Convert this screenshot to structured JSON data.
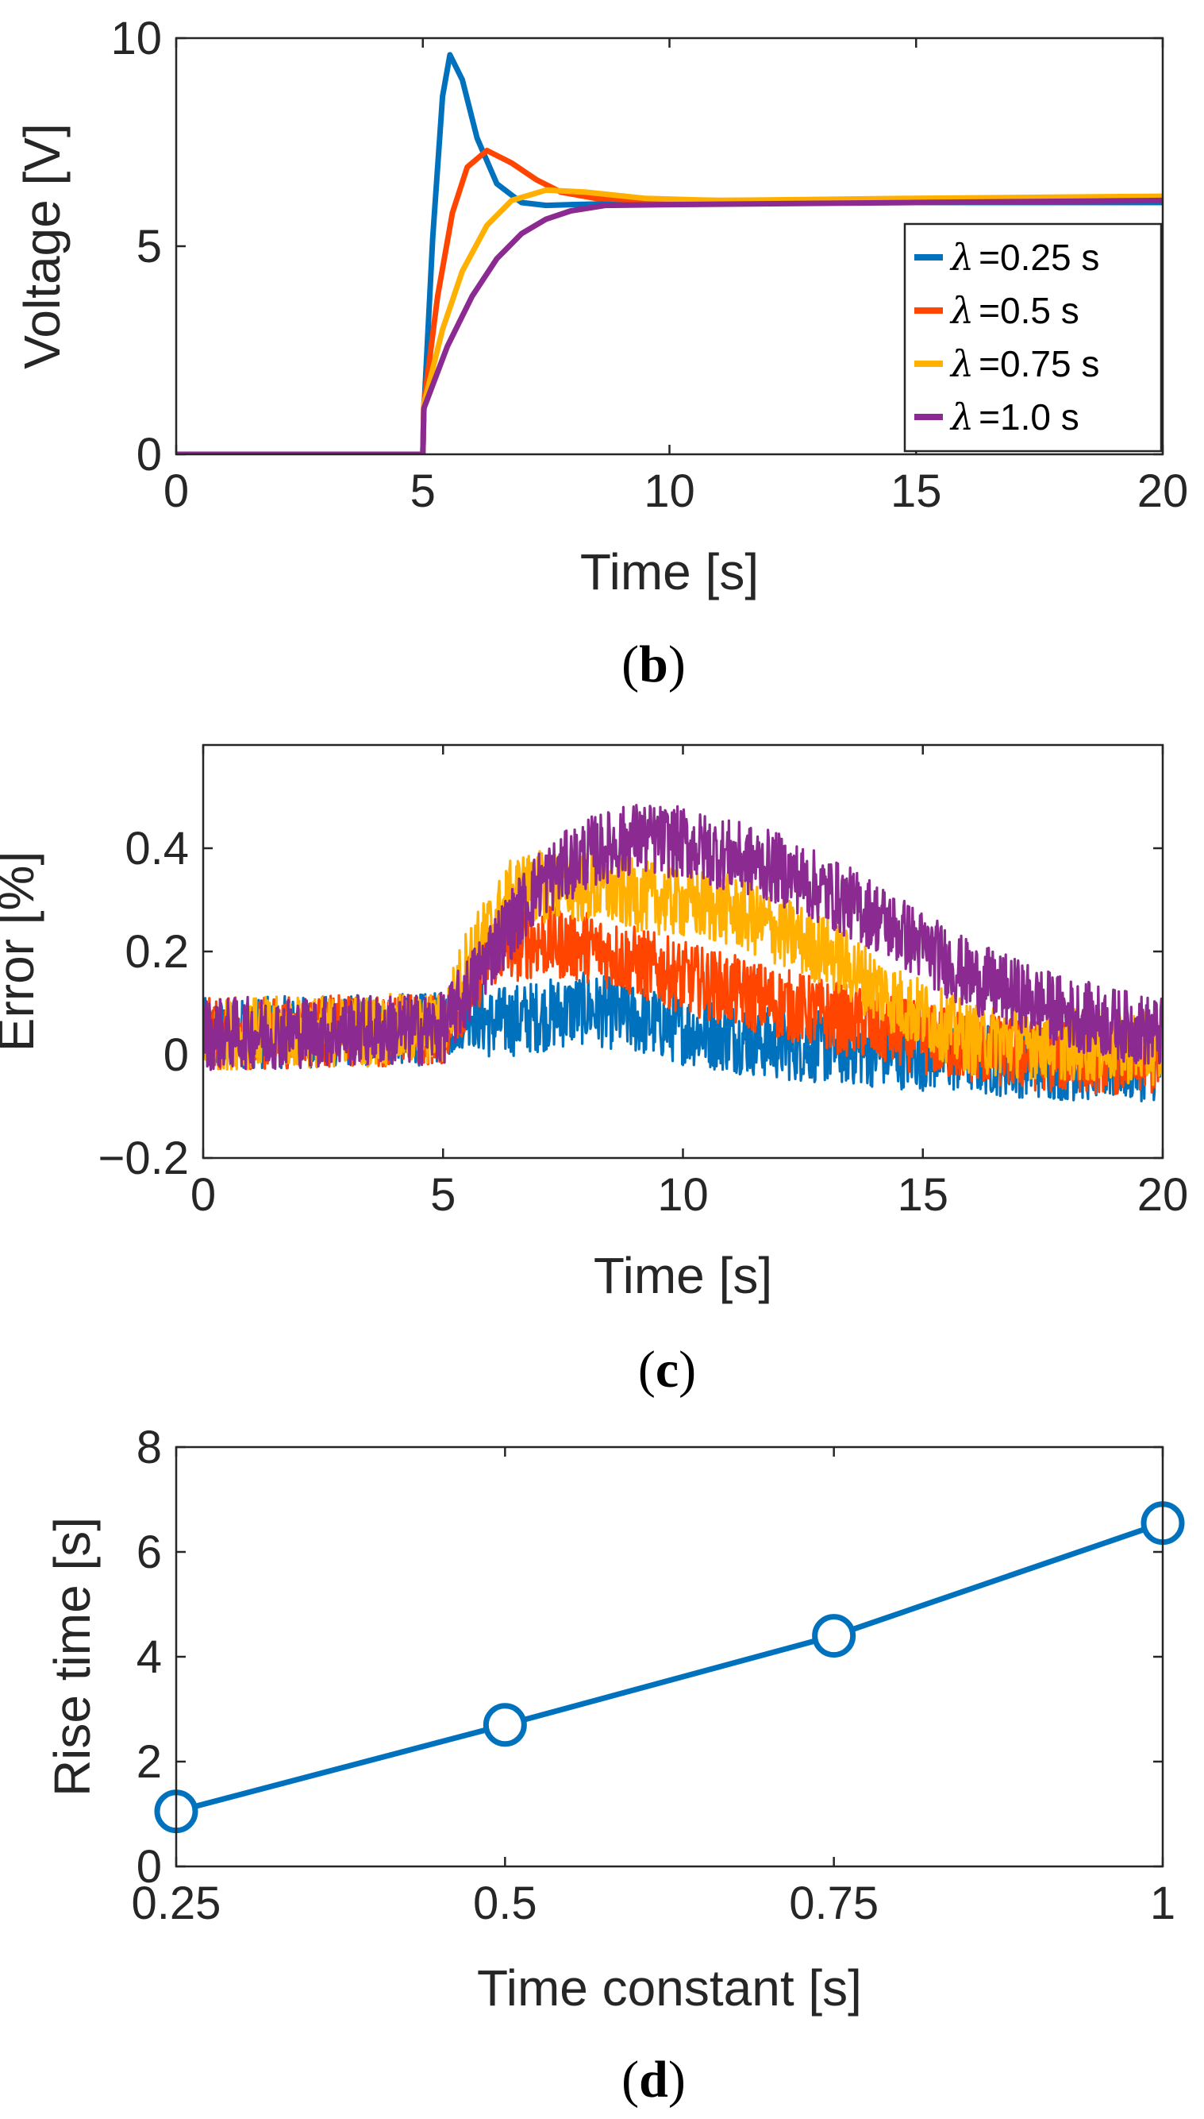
{
  "chart_data": [
    {
      "id": "b",
      "type": "line",
      "caption": {
        "open": "(",
        "letter": "b",
        "close": ")"
      },
      "xlabel": "Time [s]",
      "ylabel": "Voltage [V]",
      "xlim": [
        0,
        20
      ],
      "ylim": [
        0,
        10
      ],
      "xticks": [
        0,
        5,
        10,
        15,
        20
      ],
      "yticks": [
        0,
        5,
        10
      ],
      "grid": false,
      "legend": "right",
      "series": [
        {
          "name": "=0.25 s",
          "lambda_symbol": "λ",
          "color": "#0072BD",
          "tau": 0.25,
          "peak": 9.6,
          "peak_t": 5.55,
          "final": 6.0,
          "points": [
            [
              0,
              0
            ],
            [
              5,
              0
            ],
            [
              5.02,
              1.0
            ],
            [
              5.2,
              5.2
            ],
            [
              5.4,
              8.6
            ],
            [
              5.55,
              9.6
            ],
            [
              5.8,
              9.0
            ],
            [
              6.1,
              7.6
            ],
            [
              6.5,
              6.5
            ],
            [
              7.0,
              6.05
            ],
            [
              7.5,
              5.98
            ],
            [
              8,
              6.0
            ],
            [
              10,
              6.05
            ],
            [
              15,
              6.05
            ],
            [
              20,
              6.05
            ]
          ]
        },
        {
          "name": "=0.5 s",
          "lambda_symbol": "λ",
          "color": "#FF4500",
          "tau": 0.5,
          "peak": 7.3,
          "peak_t": 6.3,
          "final": 6.1,
          "points": [
            [
              0,
              0
            ],
            [
              5,
              0
            ],
            [
              5.02,
              1.2
            ],
            [
              5.3,
              3.8
            ],
            [
              5.6,
              5.8
            ],
            [
              5.9,
              6.9
            ],
            [
              6.3,
              7.3
            ],
            [
              6.8,
              7.0
            ],
            [
              7.3,
              6.6
            ],
            [
              7.8,
              6.3
            ],
            [
              8.5,
              6.15
            ],
            [
              9.5,
              6.1
            ],
            [
              12,
              6.1
            ],
            [
              20,
              6.1
            ]
          ]
        },
        {
          "name": "=0.75 s",
          "lambda_symbol": "λ",
          "color": "#FFB000",
          "tau": 0.75,
          "peak": 6.35,
          "peak_t": 7.5,
          "final": 6.2,
          "points": [
            [
              0,
              0
            ],
            [
              5,
              0
            ],
            [
              5.02,
              1.2
            ],
            [
              5.4,
              3.0
            ],
            [
              5.8,
              4.4
            ],
            [
              6.3,
              5.5
            ],
            [
              6.8,
              6.1
            ],
            [
              7.5,
              6.35
            ],
            [
              8.3,
              6.3
            ],
            [
              9.5,
              6.15
            ],
            [
              11,
              6.1
            ],
            [
              15,
              6.15
            ],
            [
              20,
              6.2
            ]
          ]
        },
        {
          "name": "=1.0 s",
          "lambda_symbol": "λ",
          "color": "#8B2A90",
          "tau": 1.0,
          "peak": 6.1,
          "peak_t": 9.5,
          "final": 6.1,
          "points": [
            [
              0,
              0
            ],
            [
              5,
              0
            ],
            [
              5.02,
              1.1
            ],
            [
              5.5,
              2.6
            ],
            [
              6.0,
              3.8
            ],
            [
              6.5,
              4.7
            ],
            [
              7.0,
              5.3
            ],
            [
              7.5,
              5.65
            ],
            [
              8.0,
              5.85
            ],
            [
              8.7,
              5.98
            ],
            [
              10,
              6.0
            ],
            [
              15,
              6.05
            ],
            [
              20,
              6.1
            ]
          ]
        }
      ]
    },
    {
      "id": "c",
      "type": "line",
      "caption": {
        "open": "(",
        "letter": "c",
        "close": ")"
      },
      "xlabel": "Time [s]",
      "ylabel": "Error [%]",
      "xlim": [
        0,
        20
      ],
      "ylim": [
        -0.2,
        0.6
      ],
      "xticks": [
        0,
        5,
        10,
        15,
        20
      ],
      "yticks": [
        -0.2,
        0,
        0.2,
        0.4
      ],
      "ytick_labels": [
        "−0.2",
        "0",
        "0.2",
        "0.4"
      ],
      "grid": false,
      "noise_band": 0.07,
      "series": [
        {
          "color": "#0072BD",
          "mean": [
            [
              0,
              0.04
            ],
            [
              5,
              0.05
            ],
            [
              5.5,
              0.09
            ],
            [
              6,
              0.06
            ],
            [
              8,
              0.09
            ],
            [
              10,
              0.05
            ],
            [
              12,
              0.02
            ],
            [
              15,
              0.0
            ],
            [
              18,
              -0.02
            ],
            [
              20,
              -0.02
            ]
          ]
        },
        {
          "color": "#FF4500",
          "mean": [
            [
              0,
              0.04
            ],
            [
              5,
              0.05
            ],
            [
              5.5,
              0.12
            ],
            [
              6,
              0.2
            ],
            [
              7,
              0.22
            ],
            [
              8,
              0.21
            ],
            [
              10,
              0.15
            ],
            [
              12,
              0.1
            ],
            [
              15,
              0.03
            ],
            [
              17,
              0.0
            ],
            [
              20,
              -0.01
            ]
          ]
        },
        {
          "color": "#FFB000",
          "mean": [
            [
              0,
              0.04
            ],
            [
              5,
              0.05
            ],
            [
              5.5,
              0.18
            ],
            [
              6.5,
              0.32
            ],
            [
              7.5,
              0.33
            ],
            [
              9,
              0.31
            ],
            [
              11,
              0.28
            ],
            [
              13,
              0.2
            ],
            [
              14.5,
              0.1
            ],
            [
              16,
              0.03
            ],
            [
              20,
              0.01
            ]
          ]
        },
        {
          "color": "#8B2A90",
          "mean": [
            [
              0,
              0.04
            ],
            [
              5,
              0.05
            ],
            [
              5.5,
              0.12
            ],
            [
              6,
              0.2
            ],
            [
              7,
              0.33
            ],
            [
              8,
              0.39
            ],
            [
              9,
              0.42
            ],
            [
              10,
              0.41
            ],
            [
              12,
              0.36
            ],
            [
              14,
              0.27
            ],
            [
              16,
              0.15
            ],
            [
              18,
              0.08
            ],
            [
              20,
              0.04
            ]
          ]
        }
      ]
    },
    {
      "id": "d",
      "type": "line",
      "caption": {
        "open": "(",
        "letter": "d",
        "close": ")"
      },
      "xlabel": "Time constant [s]",
      "ylabel": "Rise time [s]",
      "xlim": [
        0.25,
        1
      ],
      "ylim": [
        0,
        8
      ],
      "xticks": [
        0.25,
        0.5,
        0.75,
        1
      ],
      "xtick_labels": [
        "0.25",
        "0.5",
        "0.75",
        "1"
      ],
      "yticks": [
        0,
        2,
        4,
        6,
        8
      ],
      "grid": false,
      "marker": "circle",
      "series": [
        {
          "color": "#0072BD",
          "x": [
            0.25,
            0.5,
            0.75,
            1.0
          ],
          "y": [
            1.05,
            2.7,
            4.4,
            6.55
          ]
        }
      ]
    }
  ]
}
